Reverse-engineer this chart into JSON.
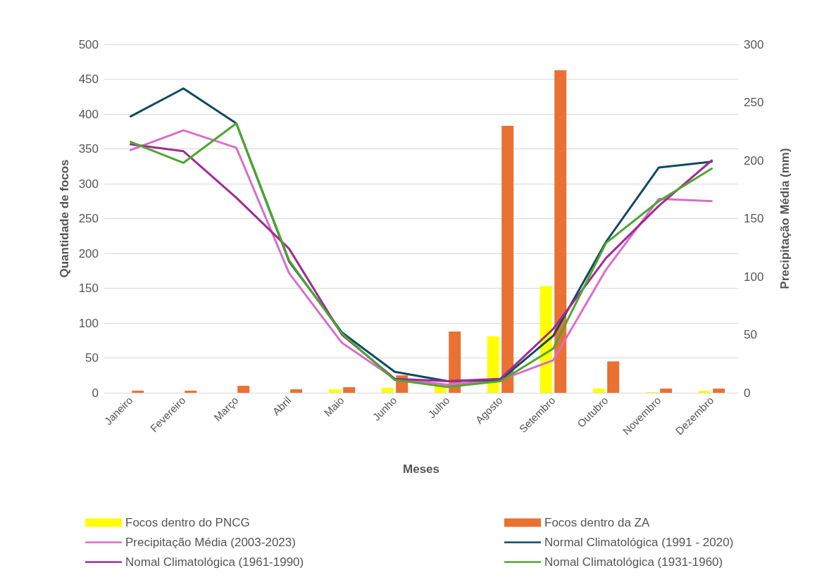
{
  "chart_data": {
    "type": "bar",
    "xlabel": "Meses",
    "ylabel": "Quantidade de focos",
    "y2label": "Precipitação Média (mm)",
    "categories": [
      "Janeiro",
      "Fevereiro",
      "Março",
      "Abril",
      "Maio",
      "Junho",
      "Julho",
      "Agosto",
      "Setembro",
      "Outubro",
      "Novembro",
      "Dezembro"
    ],
    "series": [
      {
        "name": "Focos dentro do PNCG",
        "color": "#ffff00",
        "values": [
          0,
          0,
          0,
          0,
          5,
          7,
          12,
          81,
          153,
          6,
          1,
          3
        ]
      },
      {
        "name": "Focos dentro da ZA",
        "color": "#e97132",
        "values": [
          3,
          3,
          10,
          5,
          8,
          25,
          88,
          383,
          463,
          45,
          6,
          6
        ]
      },
      {
        "name": "Precipitação Média (2003-2023)",
        "type": "line",
        "axis": "y2",
        "color": "#d86ecc",
        "values": [
          209,
          226,
          211,
          103,
          43,
          12,
          7,
          11,
          28,
          106,
          167,
          165
        ]
      },
      {
        "name": "Normal Climatológica (1991 - 2020)",
        "type": "line",
        "axis": "y2",
        "color": "#0e4a62",
        "values": [
          238,
          262,
          232,
          113,
          52,
          18,
          10,
          11,
          49,
          130,
          194,
          199
        ]
      },
      {
        "name": "Nomal Climatológica (1961-1990)",
        "type": "line",
        "axis": "y2",
        "color": "#a02b93",
        "values": [
          214,
          208,
          168,
          124,
          50,
          12,
          10,
          12,
          55,
          116,
          161,
          200
        ]
      },
      {
        "name": "Nomal Climatológica (1931-1960)",
        "type": "line",
        "axis": "y2",
        "color": "#4ea72e",
        "values": [
          216,
          198,
          232,
          114,
          51,
          11,
          5,
          10,
          38,
          129,
          165,
          193
        ]
      }
    ],
    "ylim": [
      0,
      500
    ],
    "yticks": [
      0,
      50,
      100,
      150,
      200,
      250,
      300,
      350,
      400,
      450,
      500
    ],
    "y2lim": [
      0,
      300
    ],
    "y2ticks": [
      0,
      50,
      100,
      150,
      200,
      250,
      300
    ],
    "grid": "y",
    "legend": "bottom",
    "marker": "none",
    "line_style": "solid"
  }
}
